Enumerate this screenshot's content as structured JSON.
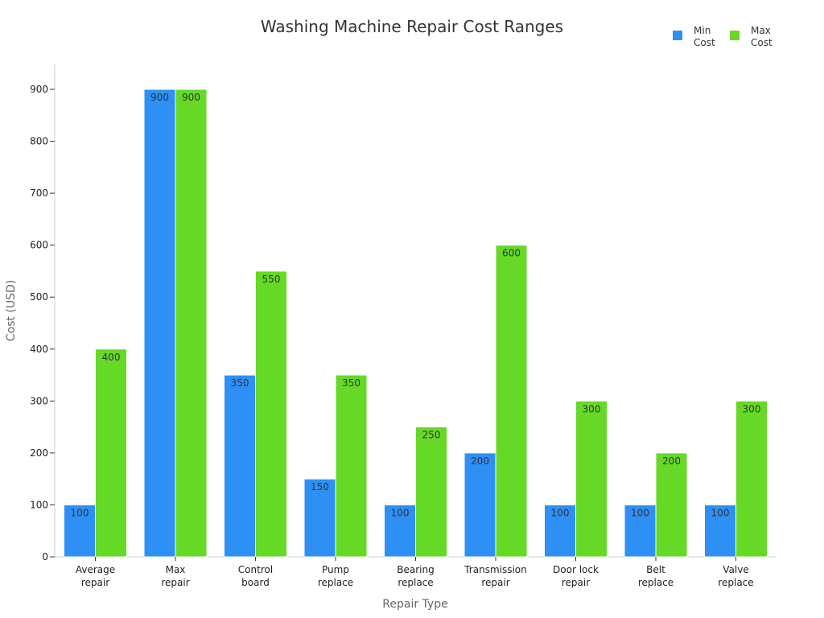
{
  "chart_data": {
    "type": "bar",
    "title": "Washing Machine Repair Cost Ranges",
    "xlabel": "Repair Type",
    "ylabel": "Cost (USD)",
    "ylim": [
      0,
      950
    ],
    "yticks": [
      0,
      100,
      200,
      300,
      400,
      500,
      600,
      700,
      800,
      900
    ],
    "categories": [
      [
        "Average",
        "repair"
      ],
      [
        "Max",
        "repair"
      ],
      [
        "Control",
        "board"
      ],
      [
        "Pump",
        "replace"
      ],
      [
        "Bearing",
        "replace"
      ],
      [
        "Transmission",
        "repair"
      ],
      [
        "Door lock",
        "repair"
      ],
      [
        "Belt",
        "replace"
      ],
      [
        "Valve",
        "replace"
      ]
    ],
    "series": [
      {
        "name": [
          "Min",
          "Cost"
        ],
        "color": "#2e90f5",
        "values": [
          100,
          900,
          350,
          150,
          100,
          200,
          100,
          100,
          100
        ]
      },
      {
        "name": [
          "Max",
          "Cost"
        ],
        "color": "#66d926",
        "values": [
          400,
          900,
          550,
          350,
          250,
          600,
          300,
          200,
          300
        ]
      }
    ],
    "legend": "top-right",
    "grid": false
  }
}
